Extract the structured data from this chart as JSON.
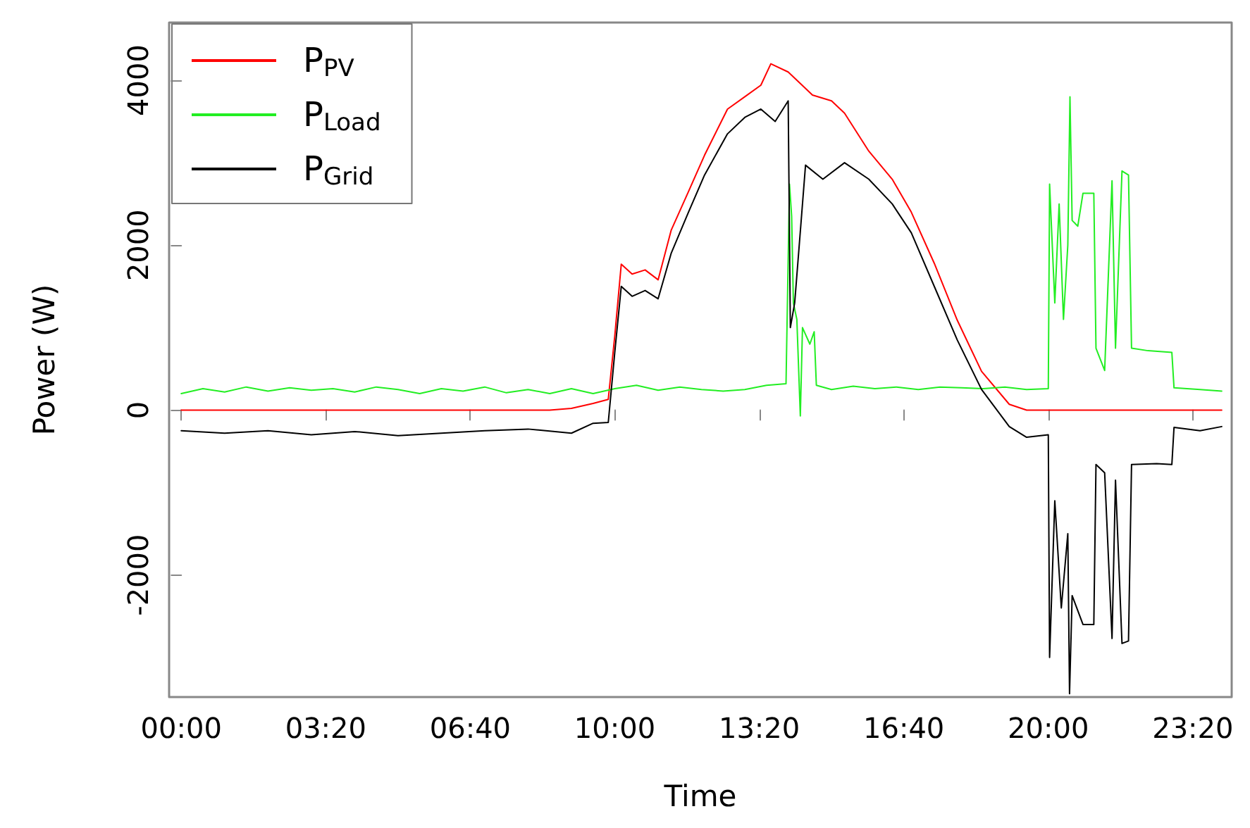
{
  "chart_data": {
    "type": "line",
    "xlabel": "Time",
    "ylabel": "Power (W)",
    "xlim": [
      -0.28,
      24.23
    ],
    "ylim": [
      -3480,
      4700
    ],
    "xticks": [
      {
        "value": 0,
        "label": "00:00"
      },
      {
        "value": 3.3333,
        "label": "03:20"
      },
      {
        "value": 6.6667,
        "label": "06:40"
      },
      {
        "value": 10,
        "label": "10:00"
      },
      {
        "value": 13.3333,
        "label": "13:20"
      },
      {
        "value": 16.6667,
        "label": "16:40"
      },
      {
        "value": 20,
        "label": "20:00"
      },
      {
        "value": 23.3333,
        "label": "23:20"
      }
    ],
    "yticks": [
      -2000,
      0,
      2000,
      4000
    ],
    "grid": false,
    "legend": "top left",
    "marker": "none",
    "line_style": "solid",
    "series": [
      {
        "name": "P$_{PV}$",
        "color": "#ff0000",
        "x": [
          0,
          8.5,
          9.0,
          9.5,
          9.85,
          10.0,
          10.15,
          10.4,
          10.7,
          11.0,
          11.3,
          11.7,
          12.07,
          12.6,
          13.0,
          13.37,
          13.6,
          14.0,
          14.3,
          14.56,
          15.0,
          15.3,
          15.86,
          16.4,
          16.84,
          17.37,
          17.9,
          18.46,
          19.1,
          19.5,
          24
        ],
        "values": [
          0,
          0,
          20,
          80,
          130,
          900,
          1770,
          1650,
          1700,
          1580,
          2180,
          2650,
          3090,
          3650,
          3800,
          3940,
          4200,
          4100,
          3950,
          3820,
          3750,
          3600,
          3140,
          2800,
          2400,
          1780,
          1090,
          470,
          70,
          0,
          0
        ]
      },
      {
        "name": "P$_{Load}$",
        "color": "#22ee22",
        "x": [
          0,
          0.5,
          1,
          1.5,
          2,
          2.5,
          3,
          3.5,
          4,
          4.5,
          5,
          5.5,
          6,
          6.5,
          7,
          7.5,
          8,
          8.5,
          9,
          9.5,
          10,
          10.5,
          11,
          11.5,
          12,
          12.5,
          13,
          13.5,
          13.95,
          14.03,
          14.08,
          14.12,
          14.2,
          14.28,
          14.33,
          14.5,
          14.6,
          14.65,
          15,
          15.5,
          16,
          16.5,
          17,
          17.5,
          18,
          18.5,
          19,
          19.5,
          20.0,
          20.03,
          20.15,
          20.25,
          20.35,
          20.45,
          20.5,
          20.55,
          20.68,
          20.8,
          21.05,
          21.1,
          21.3,
          21.47,
          21.55,
          21.7,
          21.85,
          21.92,
          22.3,
          22.85,
          22.9,
          23.5,
          24
        ],
        "values": [
          200,
          260,
          220,
          280,
          230,
          270,
          240,
          260,
          220,
          280,
          250,
          200,
          260,
          230,
          280,
          210,
          250,
          200,
          260,
          200,
          260,
          300,
          240,
          280,
          250,
          230,
          250,
          300,
          320,
          2740,
          2350,
          1300,
          1100,
          -70,
          1000,
          800,
          950,
          300,
          250,
          290,
          260,
          280,
          250,
          280,
          270,
          260,
          280,
          250,
          260,
          2740,
          1300,
          2500,
          1100,
          2000,
          3800,
          2300,
          2230,
          2630,
          2630,
          750,
          480,
          2780,
          750,
          2900,
          2850,
          750,
          720,
          700,
          270,
          250,
          230
        ]
      },
      {
        "name": "P$_{Grid}$",
        "color": "#000000",
        "x": [
          0,
          1,
          2,
          3,
          4,
          5,
          6,
          7,
          8,
          9,
          9.5,
          9.85,
          10.0,
          10.15,
          10.4,
          10.7,
          11.0,
          11.3,
          11.7,
          12.07,
          12.6,
          13.0,
          13.37,
          13.7,
          14.0,
          14.05,
          14.15,
          14.3,
          14.4,
          14.8,
          15.3,
          15.86,
          16.4,
          16.84,
          17.37,
          17.9,
          18.46,
          19.1,
          19.5,
          20.0,
          20.03,
          20.15,
          20.3,
          20.45,
          20.49,
          20.51,
          20.55,
          20.8,
          21.05,
          21.1,
          21.3,
          21.47,
          21.55,
          21.7,
          21.85,
          21.92,
          22.5,
          22.85,
          22.9,
          23.5,
          24
        ],
        "values": [
          -250,
          -280,
          -250,
          -300,
          -260,
          -310,
          -280,
          -250,
          -230,
          -280,
          -160,
          -150,
          700,
          1500,
          1380,
          1450,
          1350,
          1900,
          2400,
          2850,
          3350,
          3550,
          3650,
          3500,
          3750,
          1000,
          1300,
          2300,
          2970,
          2800,
          3000,
          2800,
          2500,
          2150,
          1500,
          850,
          250,
          -200,
          -330,
          -300,
          -3000,
          -1100,
          -2400,
          -1500,
          -3440,
          -3440,
          -2250,
          -2600,
          -2600,
          -660,
          -760,
          -2770,
          -850,
          -2830,
          -2800,
          -660,
          -650,
          -660,
          -210,
          -250,
          -200
        ]
      }
    ]
  }
}
